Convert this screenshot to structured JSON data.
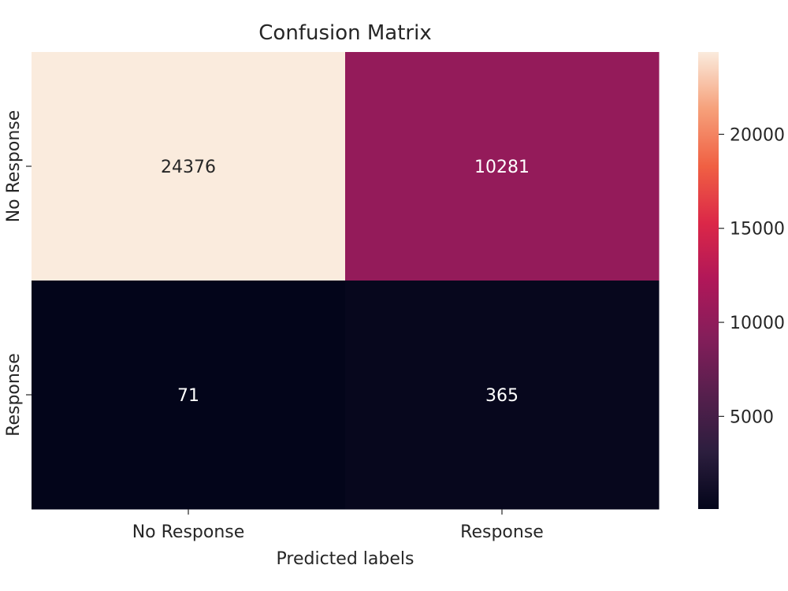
{
  "chart_data": {
    "type": "heatmap",
    "title": "Confusion Matrix",
    "xlabel": "Predicted labels",
    "ylabel": "",
    "x_categories": [
      "No Response",
      "Response"
    ],
    "y_categories": [
      "No Response",
      "Response"
    ],
    "values": [
      [
        24376,
        10281
      ],
      [
        71,
        365
      ]
    ],
    "colorbar": {
      "cmap": "rocket",
      "vmin": 71,
      "vmax": 24376,
      "ticks": [
        5000,
        10000,
        15000,
        20000
      ],
      "tick_labels": [
        "5000",
        "10000",
        "15000",
        "20000"
      ]
    }
  }
}
